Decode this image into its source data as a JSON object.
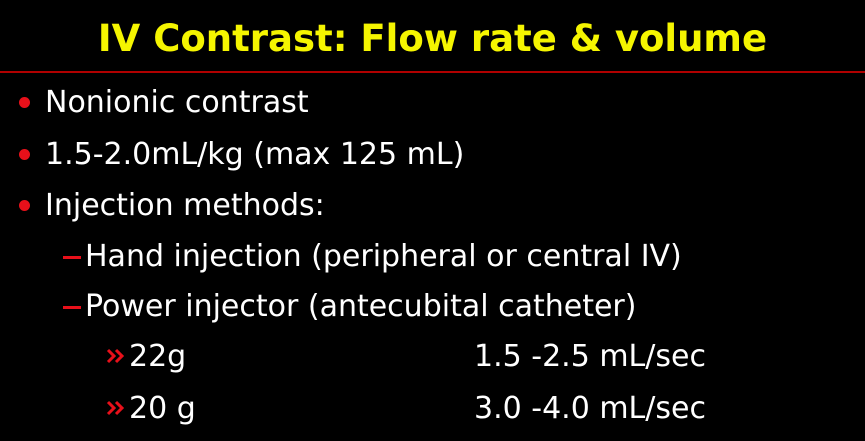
{
  "title": "IV Contrast: Flow rate & volume",
  "bullets": [
    {
      "text": "Nonionic contrast"
    },
    {
      "text": "1.5-2.0mL/kg (max 125 mL)"
    },
    {
      "text": "Injection methods:",
      "items": [
        {
          "text": "Hand injection (peripheral or central IV)"
        },
        {
          "text": "Power injector (antecubital catheter)",
          "items": [
            {
              "gauge": "22g",
              "rate": "1.5 -2.5 mL/sec"
            },
            {
              "gauge": "20 g",
              "rate": "3.0 -4.0 mL/sec"
            }
          ]
        }
      ]
    }
  ]
}
